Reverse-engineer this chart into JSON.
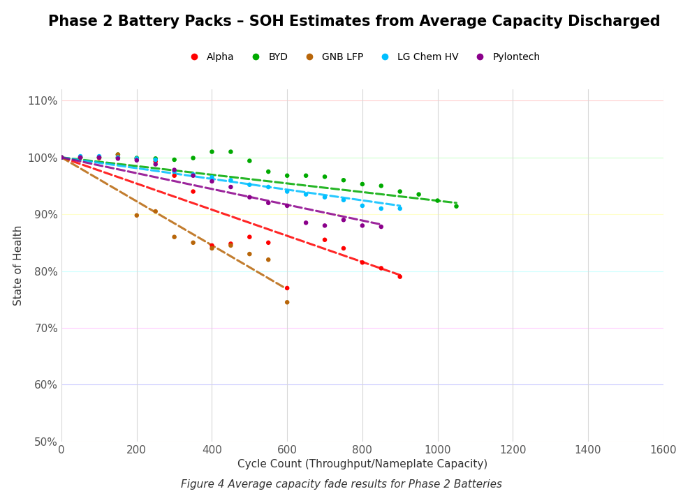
{
  "title": "Phase 2 Battery Packs – SOH Estimates from Average Capacity Discharged",
  "xlabel": "Cycle Count (Throughput/Nameplate Capacity)",
  "ylabel": "State of Health",
  "caption": "Figure 4 Average capacity fade results for Phase 2 Batteries",
  "xlim": [
    0,
    1600
  ],
  "ylim": [
    0.5,
    1.12
  ],
  "yticks": [
    0.5,
    0.6,
    0.7,
    0.8,
    0.9,
    1.0,
    1.1
  ],
  "xticks": [
    0,
    200,
    400,
    600,
    800,
    1000,
    1200,
    1400,
    1600
  ],
  "series": {
    "Alpha": {
      "color": "#FF0000",
      "scatter_x": [
        0,
        50,
        100,
        150,
        200,
        250,
        300,
        350,
        400,
        450,
        500,
        550,
        600,
        700,
        750,
        800,
        850,
        900
      ],
      "scatter_y": [
        1.0,
        1.0,
        0.999,
        1.0,
        0.998,
        0.993,
        0.968,
        0.94,
        0.845,
        0.848,
        0.86,
        0.85,
        0.77,
        0.855,
        0.84,
        0.815,
        0.805,
        0.79
      ],
      "trend_x": [
        0,
        900
      ],
      "trend_y": [
        1.0,
        0.793
      ]
    },
    "BYD": {
      "color": "#00AA00",
      "scatter_x": [
        0,
        50,
        100,
        150,
        200,
        250,
        300,
        350,
        400,
        450,
        500,
        550,
        600,
        650,
        700,
        750,
        800,
        850,
        900,
        950,
        1000,
        1050
      ],
      "scatter_y": [
        1.0,
        1.0,
        1.0,
        1.005,
        0.999,
        0.998,
        0.996,
        0.999,
        1.01,
        1.01,
        0.994,
        0.975,
        0.968,
        0.968,
        0.966,
        0.96,
        0.953,
        0.95,
        0.94,
        0.935,
        0.924,
        0.914
      ],
      "trend_x": [
        0,
        1050
      ],
      "trend_y": [
        1.0,
        0.92
      ]
    },
    "GNB LFP": {
      "color": "#B8660A",
      "scatter_x": [
        0,
        50,
        100,
        150,
        200,
        250,
        300,
        350,
        400,
        450,
        500,
        550,
        600
      ],
      "scatter_y": [
        1.0,
        1.0,
        1.0,
        1.005,
        0.898,
        0.905,
        0.86,
        0.85,
        0.84,
        0.845,
        0.83,
        0.82,
        0.745
      ],
      "trend_x": [
        0,
        600
      ],
      "trend_y": [
        1.0,
        0.768
      ]
    },
    "LG Chem HV": {
      "color": "#00BFFF",
      "scatter_x": [
        0,
        50,
        100,
        150,
        200,
        250,
        300,
        350,
        400,
        450,
        500,
        550,
        600,
        650,
        700,
        750,
        800,
        850,
        900
      ],
      "scatter_y": [
        1.0,
        1.002,
        1.002,
        1.0,
        0.998,
        0.996,
        0.975,
        0.97,
        0.965,
        0.96,
        0.952,
        0.948,
        0.94,
        0.935,
        0.93,
        0.925,
        0.915,
        0.91,
        0.91
      ],
      "trend_x": [
        0,
        900
      ],
      "trend_y": [
        1.0,
        0.915
      ]
    },
    "Pylontech": {
      "color": "#8B008B",
      "scatter_x": [
        0,
        50,
        100,
        150,
        200,
        250,
        300,
        350,
        400,
        450,
        500,
        550,
        600,
        650,
        700,
        750,
        800,
        850
      ],
      "scatter_y": [
        1.0,
        1.0,
        1.0,
        0.998,
        0.995,
        0.988,
        0.978,
        0.968,
        0.958,
        0.948,
        0.93,
        0.92,
        0.915,
        0.885,
        0.88,
        0.89,
        0.88,
        0.878
      ],
      "trend_x": [
        0,
        850
      ],
      "trend_y": [
        1.0,
        0.882
      ]
    }
  },
  "background_color": "#FFFFFF",
  "grid_color_default": "#E0E0E0",
  "title_fontsize": 15,
  "axis_label_fontsize": 11,
  "tick_fontsize": 11,
  "legend_fontsize": 10
}
